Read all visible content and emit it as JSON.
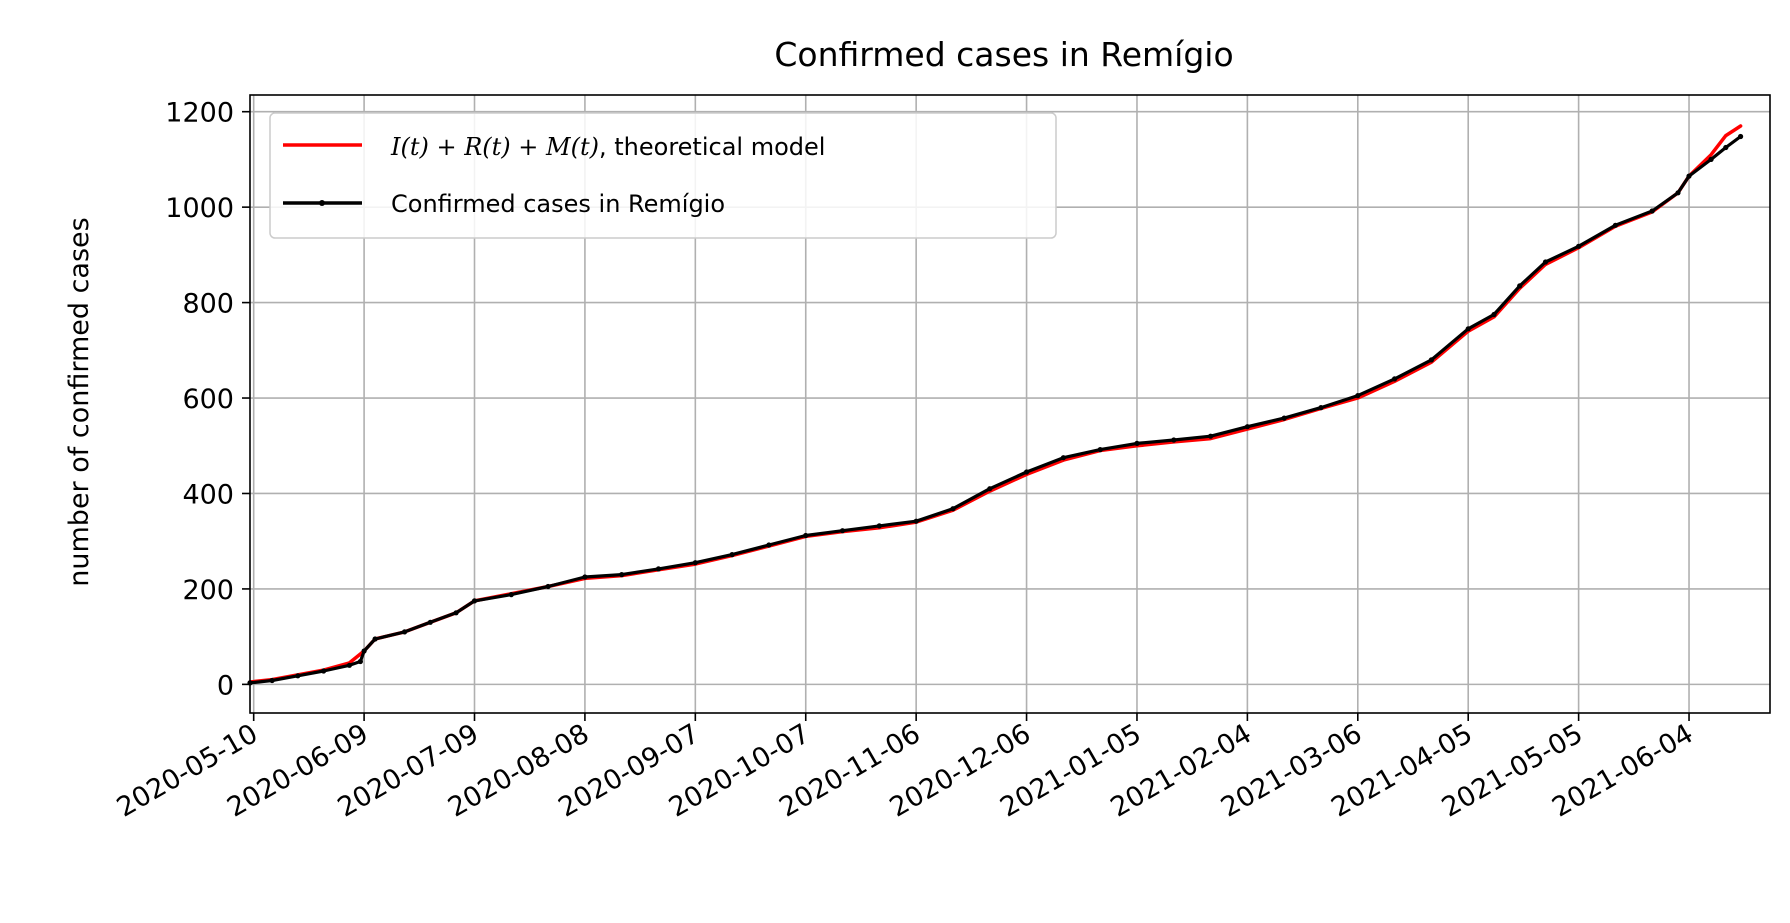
{
  "chart_data": {
    "type": "line",
    "title": "Confirmed cases in Remígio",
    "xlabel": "",
    "ylabel": "number of confirmed cases",
    "x_is_date": true,
    "xlim": [
      "2020-05-09",
      "2021-06-26"
    ],
    "ylim": [
      -60,
      1235
    ],
    "grid": true,
    "legend_position": "top-left",
    "x_ticks": [
      "2020-05-10",
      "2020-06-09",
      "2020-07-09",
      "2020-08-08",
      "2020-09-07",
      "2020-10-07",
      "2020-11-06",
      "2020-12-06",
      "2021-01-05",
      "2021-02-04",
      "2021-03-06",
      "2021-04-05",
      "2021-05-05",
      "2021-06-04"
    ],
    "y_ticks": [
      0,
      200,
      400,
      600,
      800,
      1000,
      1200
    ],
    "series": [
      {
        "name": "I(t)+R(t)+M(t), theoretical model",
        "legend_label_math": "I(t) + R(t) + M(t)",
        "legend_label_text": ", theoretical model",
        "color": "#ff0000",
        "style": "line",
        "points": [
          [
            "2020-05-09",
            5
          ],
          [
            "2020-05-15",
            10
          ],
          [
            "2020-05-22",
            20
          ],
          [
            "2020-05-29",
            30
          ],
          [
            "2020-06-05",
            45
          ],
          [
            "2020-06-09",
            70
          ],
          [
            "2020-06-12",
            95
          ],
          [
            "2020-06-20",
            110
          ],
          [
            "2020-06-27",
            130
          ],
          [
            "2020-07-04",
            150
          ],
          [
            "2020-07-09",
            175
          ],
          [
            "2020-07-19",
            190
          ],
          [
            "2020-07-29",
            205
          ],
          [
            "2020-08-08",
            222
          ],
          [
            "2020-08-18",
            228
          ],
          [
            "2020-08-28",
            240
          ],
          [
            "2020-09-07",
            252
          ],
          [
            "2020-09-17",
            270
          ],
          [
            "2020-09-27",
            290
          ],
          [
            "2020-10-07",
            310
          ],
          [
            "2020-10-17",
            320
          ],
          [
            "2020-10-27",
            328
          ],
          [
            "2020-11-06",
            340
          ],
          [
            "2020-11-16",
            365
          ],
          [
            "2020-11-26",
            405
          ],
          [
            "2020-12-06",
            440
          ],
          [
            "2020-12-16",
            470
          ],
          [
            "2020-12-26",
            490
          ],
          [
            "2021-01-05",
            500
          ],
          [
            "2021-01-15",
            508
          ],
          [
            "2021-01-25",
            515
          ],
          [
            "2021-02-04",
            535
          ],
          [
            "2021-02-14",
            555
          ],
          [
            "2021-02-24",
            578
          ],
          [
            "2021-03-06",
            600
          ],
          [
            "2021-03-16",
            635
          ],
          [
            "2021-03-26",
            675
          ],
          [
            "2021-04-05",
            740
          ],
          [
            "2021-04-12",
            770
          ],
          [
            "2021-04-19",
            830
          ],
          [
            "2021-04-26",
            880
          ],
          [
            "2021-05-05",
            915
          ],
          [
            "2021-05-15",
            960
          ],
          [
            "2021-05-25",
            990
          ],
          [
            "2021-06-01",
            1030
          ],
          [
            "2021-06-04",
            1065
          ],
          [
            "2021-06-10",
            1110
          ],
          [
            "2021-06-14",
            1150
          ],
          [
            "2021-06-18",
            1170
          ]
        ]
      },
      {
        "name": "Confirmed cases in Remígio",
        "color": "#000000",
        "style": "line-markers",
        "points": [
          [
            "2020-05-09",
            3
          ],
          [
            "2020-05-15",
            8
          ],
          [
            "2020-05-22",
            18
          ],
          [
            "2020-05-29",
            28
          ],
          [
            "2020-06-05",
            40
          ],
          [
            "2020-06-08",
            48
          ],
          [
            "2020-06-09",
            70
          ],
          [
            "2020-06-12",
            95
          ],
          [
            "2020-06-20",
            110
          ],
          [
            "2020-06-27",
            130
          ],
          [
            "2020-07-04",
            150
          ],
          [
            "2020-07-09",
            175
          ],
          [
            "2020-07-19",
            188
          ],
          [
            "2020-07-29",
            205
          ],
          [
            "2020-08-08",
            225
          ],
          [
            "2020-08-18",
            230
          ],
          [
            "2020-08-28",
            242
          ],
          [
            "2020-09-07",
            255
          ],
          [
            "2020-09-17",
            272
          ],
          [
            "2020-09-27",
            292
          ],
          [
            "2020-10-07",
            312
          ],
          [
            "2020-10-17",
            322
          ],
          [
            "2020-10-27",
            332
          ],
          [
            "2020-11-06",
            342
          ],
          [
            "2020-11-16",
            368
          ],
          [
            "2020-11-26",
            410
          ],
          [
            "2020-12-06",
            445
          ],
          [
            "2020-12-16",
            475
          ],
          [
            "2020-12-26",
            492
          ],
          [
            "2021-01-05",
            505
          ],
          [
            "2021-01-15",
            512
          ],
          [
            "2021-01-25",
            520
          ],
          [
            "2021-02-04",
            540
          ],
          [
            "2021-02-14",
            558
          ],
          [
            "2021-02-24",
            580
          ],
          [
            "2021-03-06",
            605
          ],
          [
            "2021-03-16",
            640
          ],
          [
            "2021-03-26",
            680
          ],
          [
            "2021-04-05",
            745
          ],
          [
            "2021-04-12",
            775
          ],
          [
            "2021-04-19",
            835
          ],
          [
            "2021-04-26",
            885
          ],
          [
            "2021-05-05",
            918
          ],
          [
            "2021-05-15",
            962
          ],
          [
            "2021-05-25",
            992
          ],
          [
            "2021-06-01",
            1030
          ],
          [
            "2021-06-04",
            1065
          ],
          [
            "2021-06-10",
            1100
          ],
          [
            "2021-06-14",
            1125
          ],
          [
            "2021-06-18",
            1148
          ]
        ]
      }
    ]
  }
}
